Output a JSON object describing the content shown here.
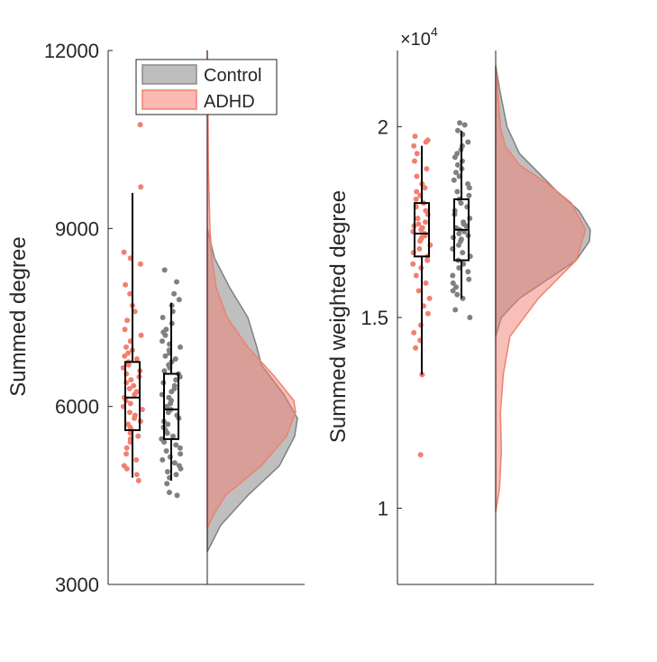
{
  "colors": {
    "control": "#808080",
    "adhd": "#f08070",
    "axis": "#262626"
  },
  "chart_data": [
    {
      "type": "raincloud",
      "ylabel": "Summed degree",
      "ylim": [
        3000,
        12000
      ],
      "yticks": [
        3000,
        6000,
        9000,
        12000
      ],
      "ytick_labels": [
        "3000",
        "6000",
        "9000",
        "12000"
      ],
      "legend": {
        "placement": "top-left",
        "entries": [
          "Control",
          "ADHD"
        ]
      },
      "series": [
        {
          "name": "ADHD",
          "box": {
            "whisker_low": 4800,
            "q1": 5600,
            "median": 6150,
            "q3": 6750,
            "whisker_high": 9600
          },
          "points": [
            10750,
            9700,
            8600,
            8500,
            8400,
            8050,
            7900,
            7700,
            7600,
            7450,
            7300,
            7200,
            7100,
            7000,
            6950,
            6900,
            6850,
            6800,
            6750,
            6700,
            6650,
            6600,
            6550,
            6500,
            6450,
            6400,
            6350,
            6300,
            6250,
            6200,
            6150,
            6100,
            6050,
            6000,
            5950,
            5900,
            5850,
            5800,
            5750,
            5700,
            5650,
            5600,
            5550,
            5500,
            5450,
            5400,
            5300,
            5200,
            5100,
            5000,
            4950,
            4850,
            4750
          ],
          "density": [
            [
              3950,
              0.0
            ],
            [
              4200,
              0.08
            ],
            [
              4500,
              0.2
            ],
            [
              5000,
              0.6
            ],
            [
              5500,
              0.88
            ],
            [
              5900,
              0.98
            ],
            [
              6100,
              0.96
            ],
            [
              6500,
              0.75
            ],
            [
              7000,
              0.45
            ],
            [
              7500,
              0.22
            ],
            [
              8000,
              0.1
            ],
            [
              8500,
              0.05
            ],
            [
              9000,
              0.03
            ],
            [
              10000,
              0.012
            ],
            [
              11000,
              0.008
            ],
            [
              12000,
              0.0
            ]
          ]
        },
        {
          "name": "Control",
          "box": {
            "whisker_low": 4750,
            "q1": 5450,
            "median": 5950,
            "q3": 6550,
            "whisker_high": 7750
          },
          "points": [
            8300,
            8100,
            7900,
            7800,
            7700,
            7600,
            7500,
            7400,
            7300,
            7250,
            7200,
            7100,
            7050,
            7000,
            6950,
            6900,
            6850,
            6800,
            6750,
            6700,
            6650,
            6600,
            6550,
            6500,
            6450,
            6400,
            6350,
            6300,
            6250,
            6200,
            6150,
            6100,
            6050,
            6000,
            5950,
            5900,
            5850,
            5800,
            5750,
            5700,
            5650,
            5600,
            5550,
            5500,
            5450,
            5400,
            5350,
            5300,
            5250,
            5200,
            5150,
            5100,
            5050,
            5000,
            4950,
            4900,
            4850,
            4800,
            4700,
            4550,
            4500
          ],
          "density": [
            [
              3550,
              0.0
            ],
            [
              4000,
              0.15
            ],
            [
              4500,
              0.45
            ],
            [
              5000,
              0.8
            ],
            [
              5500,
              0.97
            ],
            [
              5800,
              1.0
            ],
            [
              6200,
              0.85
            ],
            [
              6700,
              0.6
            ],
            [
              7000,
              0.55
            ],
            [
              7500,
              0.45
            ],
            [
              8000,
              0.25
            ],
            [
              8500,
              0.08
            ],
            [
              9000,
              0.0
            ]
          ]
        }
      ]
    },
    {
      "type": "raincloud",
      "ylabel": "Summed weighted degree",
      "ylim": [
        8000,
        22000
      ],
      "yticks": [
        10000,
        15000,
        20000
      ],
      "ytick_labels": [
        "1",
        "1.5",
        "2"
      ],
      "exponent_label": "×10",
      "exponent_power": "4",
      "series": [
        {
          "name": "ADHD",
          "box": {
            "whisker_low": 13500,
            "q1": 16600,
            "median": 17200,
            "q3": 18000,
            "whisker_high": 19500
          },
          "points": [
            19750,
            19650,
            19600,
            19500,
            19300,
            19100,
            18900,
            18700,
            18500,
            18400,
            18300,
            18200,
            18100,
            18000,
            17900,
            17800,
            17700,
            17600,
            17500,
            17450,
            17400,
            17350,
            17300,
            17250,
            17200,
            17150,
            17100,
            17050,
            17000,
            16900,
            16800,
            16700,
            16600,
            16500,
            16400,
            16300,
            16100,
            15900,
            15700,
            15500,
            15300,
            15100,
            14800,
            14600,
            14400,
            14200,
            13500,
            11400
          ],
          "density": [
            [
              9900,
              0.0
            ],
            [
              10500,
              0.04
            ],
            [
              11500,
              0.06
            ],
            [
              12500,
              0.05
            ],
            [
              13500,
              0.08
            ],
            [
              14500,
              0.15
            ],
            [
              15500,
              0.45
            ],
            [
              16500,
              0.85
            ],
            [
              17300,
              0.95
            ],
            [
              18000,
              0.8
            ],
            [
              18500,
              0.55
            ],
            [
              19000,
              0.25
            ],
            [
              19500,
              0.1
            ],
            [
              20000,
              0.05
            ],
            [
              21000,
              0.02
            ],
            [
              21500,
              0.0
            ]
          ]
        },
        {
          "name": "Control",
          "box": {
            "whisker_low": 15500,
            "q1": 16500,
            "median": 17300,
            "q3": 18100,
            "whisker_high": 19900
          },
          "points": [
            20100,
            20050,
            19900,
            19800,
            19600,
            19500,
            19400,
            19300,
            19200,
            19100,
            19000,
            18900,
            18800,
            18700,
            18600,
            18500,
            18400,
            18300,
            18200,
            18100,
            18000,
            17900,
            17800,
            17700,
            17600,
            17500,
            17450,
            17400,
            17350,
            17300,
            17250,
            17200,
            17150,
            17100,
            17050,
            17000,
            16900,
            16800,
            16700,
            16600,
            16500,
            16400,
            16300,
            16200,
            16100,
            16000,
            15900,
            15800,
            15700,
            15600,
            15500,
            15200,
            15000
          ],
          "density": [
            [
              14500,
              0.0
            ],
            [
              15000,
              0.06
            ],
            [
              15500,
              0.25
            ],
            [
              16000,
              0.55
            ],
            [
              16500,
              0.85
            ],
            [
              17000,
              0.99
            ],
            [
              17300,
              1.0
            ],
            [
              17800,
              0.88
            ],
            [
              18300,
              0.65
            ],
            [
              18800,
              0.45
            ],
            [
              19300,
              0.25
            ],
            [
              20000,
              0.12
            ],
            [
              21000,
              0.04
            ],
            [
              21600,
              0.0
            ]
          ]
        }
      ]
    }
  ]
}
